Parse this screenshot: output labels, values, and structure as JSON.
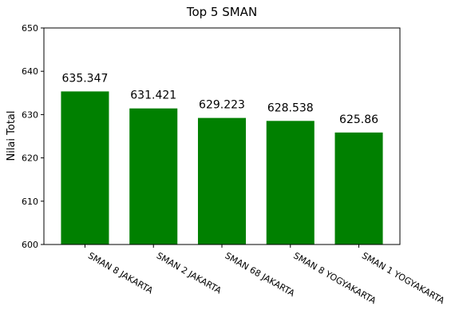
{
  "chart_data": {
    "type": "bar",
    "title": "Top 5 SMAN",
    "xlabel": "",
    "ylabel": "Nilai Total",
    "categories": [
      "SMAN 8 JAKARTA",
      "SMAN 2 JAKARTA",
      "SMAN 68 JAKARTA",
      "SMAN 8 YOGYAKARTA",
      "SMAN 1 YOGYAKARTA"
    ],
    "values": [
      635.347,
      631.421,
      629.223,
      628.538,
      625.86
    ],
    "data_labels": [
      "635.347",
      "631.421",
      "629.223",
      "628.538",
      "625.86"
    ],
    "ylim": [
      600,
      650
    ],
    "yticks": [
      600,
      610,
      620,
      630,
      640,
      650
    ],
    "ytick_labels": [
      "600",
      "610",
      "620",
      "630",
      "640",
      "650"
    ],
    "bar_color": "#008000",
    "grid": false,
    "legend": false
  }
}
